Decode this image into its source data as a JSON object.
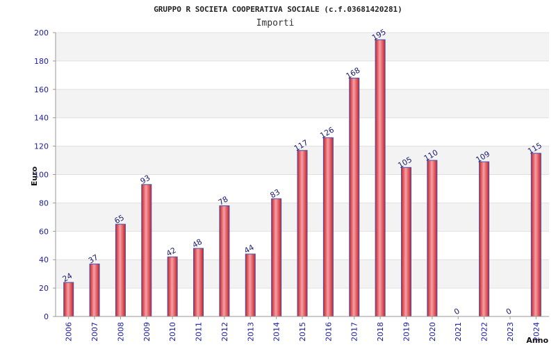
{
  "chart_data": {
    "type": "bar",
    "title": "GRUPPO R SOCIETA COOPERATIVA SOCIALE (c.f.03681420281)",
    "subtitle": "Importi",
    "xlabel": "Anno",
    "ylabel": "Euro",
    "ylim": [
      0,
      200
    ],
    "yticks": [
      0,
      20,
      40,
      60,
      80,
      100,
      120,
      140,
      160,
      180,
      200
    ],
    "categories": [
      "2006",
      "2007",
      "2008",
      "2009",
      "2010",
      "2011",
      "2012",
      "2013",
      "2014",
      "2015",
      "2016",
      "2017",
      "2018",
      "2019",
      "2020",
      "2021",
      "2022",
      "2023",
      "2024"
    ],
    "values": [
      24,
      37,
      65,
      93,
      42,
      48,
      78,
      44,
      83,
      117,
      126,
      168,
      195,
      105,
      110,
      0,
      109,
      0,
      115
    ],
    "grid": true,
    "colors": {
      "bar": "#e8343a",
      "bar_edge": "#4455aa",
      "band": "#f3f3f3",
      "tick_text": "#1a1aa0"
    }
  }
}
